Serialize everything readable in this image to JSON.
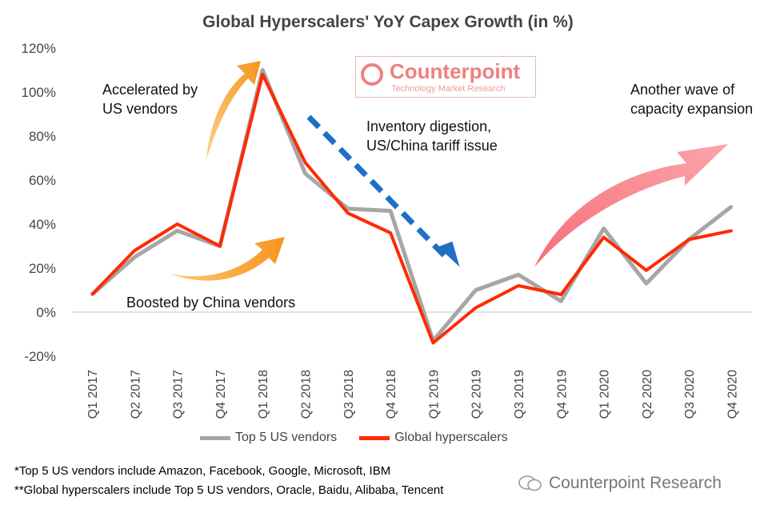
{
  "chart_data": {
    "type": "line",
    "title": "Global Hyperscalers' YoY Capex Growth (in %)",
    "categories": [
      "Q1 2017",
      "Q2 2017",
      "Q3 2017",
      "Q4 2017",
      "Q1 2018",
      "Q2 2018",
      "Q3 2018",
      "Q4 2018",
      "Q1 2019",
      "Q2 2019",
      "Q3 2019",
      "Q4 2019",
      "Q1 2020",
      "Q2 2020",
      "Q3 2020",
      "Q4 2020"
    ],
    "ylim": [
      -20,
      120
    ],
    "yticks": [
      -20,
      0,
      20,
      40,
      60,
      80,
      100,
      120
    ],
    "ytick_labels": [
      "-20%",
      "0%",
      "20%",
      "40%",
      "60%",
      "80%",
      "100%",
      "120%"
    ],
    "grid": false,
    "legend_position": "bottom",
    "series": [
      {
        "name": "Top 5 US vendors",
        "color": "#a6a6a6",
        "values": [
          8,
          25,
          37,
          30,
          110,
          63,
          47,
          46,
          -13,
          10,
          17,
          5,
          38,
          13,
          33,
          48
        ]
      },
      {
        "name": "Global hyperscalers",
        "color": "#ff2a00",
        "values": [
          8,
          28,
          40,
          30,
          108,
          68,
          45,
          36,
          -14,
          2,
          12,
          8,
          34,
          19,
          33,
          37
        ]
      }
    ],
    "annotations": [
      "Accelerated by US vendors",
      "Boosted by China vendors",
      "Inventory digestion, US/China tariff issue",
      "Another wave of capacity expansion"
    ]
  },
  "annotations": {
    "accelerated_line1": "Accelerated by",
    "accelerated_line2": "US vendors",
    "boosted": "Boosted by China vendors",
    "inventory_line1": "Inventory digestion,",
    "inventory_line2": "US/China tariff issue",
    "wave_line1": "Another wave of",
    "wave_line2": "capacity expansion"
  },
  "logo": {
    "name": "Counterpoint",
    "subtitle": "Technology Market Research"
  },
  "footnotes": [
    "*Top 5 US vendors include Amazon, Facebook, Google, Microsoft, IBM",
    "**Global hyperscalers include Top 5 US vendors, Oracle, Baidu, Alibaba, Tencent"
  ],
  "watermark": "Counterpoint Research",
  "colors": {
    "us_series": "#a6a6a6",
    "global_series": "#ff2a00",
    "orange_arrow": "#f7941d",
    "blue_arrow": "#1f6fc6",
    "pink_arrow": "#f77f87"
  }
}
